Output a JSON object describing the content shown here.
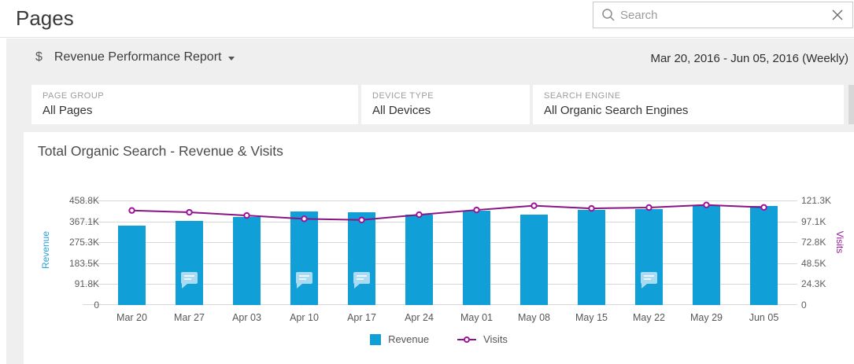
{
  "header": {
    "title": "Pages"
  },
  "search": {
    "placeholder": "Search"
  },
  "report_bar": {
    "icon": "dollar-icon",
    "title": "Revenue Performance Report",
    "date_range": "Mar 20, 2016 - Jun 05, 2016 (Weekly)"
  },
  "filters": [
    {
      "label": "PAGE GROUP",
      "value": "All Pages"
    },
    {
      "label": "DEVICE TYPE",
      "value": "All Devices"
    },
    {
      "label": "SEARCH ENGINE",
      "value": "All Organic Search Engines"
    }
  ],
  "chart_data": {
    "type": "bar+line",
    "title": "Total Organic Search - Revenue & Visits",
    "categories": [
      "Mar 20",
      "Mar 27",
      "Apr 03",
      "Apr 10",
      "Apr 17",
      "Apr 24",
      "May 01",
      "May 08",
      "May 15",
      "May 22",
      "May 29",
      "Jun 05"
    ],
    "series": [
      {
        "name": "Revenue",
        "type": "bar",
        "axis": "left",
        "color": "#119FD8",
        "values_K": [
          349.8,
          368.8,
          386.1,
          409.3,
          406.9,
          397.5,
          414.8,
          395.4,
          418.3,
          421.7,
          435.6,
          433.5
        ]
      },
      {
        "name": "Visits",
        "type": "line",
        "axis": "right",
        "color": "#8A1484",
        "marker_color": "#A0119B",
        "values_K": [
          109.7,
          107.6,
          103.9,
          100.0,
          98.7,
          104.8,
          110.3,
          115.2,
          112.1,
          113.1,
          116.1,
          113.3
        ]
      }
    ],
    "left_axis": {
      "label": "Revenue",
      "color": "#2BA3DC",
      "max_K": 458.8,
      "ticks": [
        "0",
        "91.8K",
        "183.5K",
        "275.3K",
        "367.1K",
        "458.8K"
      ]
    },
    "right_axis": {
      "label": "Visits",
      "color": "#9C1F9C",
      "max_K": 121.3,
      "ticks": [
        "0",
        "24.3K",
        "48.5K",
        "72.8K",
        "97.1K",
        "121.3K"
      ]
    },
    "annotation_note_indices": [
      1,
      3,
      4,
      9
    ],
    "grid": true,
    "legend_position": "bottom"
  }
}
